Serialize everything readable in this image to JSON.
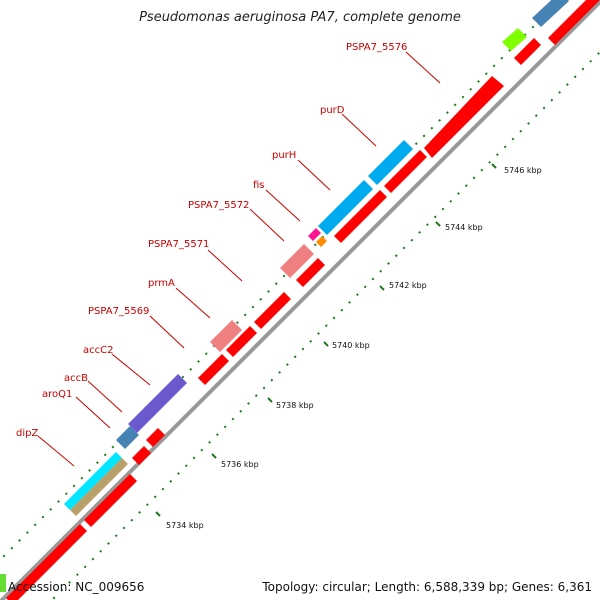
{
  "title": "Pseudomonas aeruginosa PA7, complete genome",
  "accession": "Accession: NC_009656",
  "summary": "Topology: circular; Length: 6,588,339 bp; Genes: 6,361",
  "colors": {
    "cds": "#ff0000",
    "backbone": "#9a9a9a",
    "gc_skew": "#1f7a1f",
    "label": "#cc0000"
  },
  "scale_ticks": [
    "5734 kbp",
    "5736 kbp",
    "5738 kbp",
    "5740 kbp",
    "5742 kbp",
    "5744 kbp",
    "5746 kbp"
  ],
  "gene_labels": [
    "dipZ",
    "aroQ1",
    "accB",
    "accC2",
    "PSPA7_5569",
    "prmA",
    "PSPA7_5571",
    "PSPA7_5572",
    "fis",
    "purH",
    "purD",
    "PSPA7_5576"
  ]
}
